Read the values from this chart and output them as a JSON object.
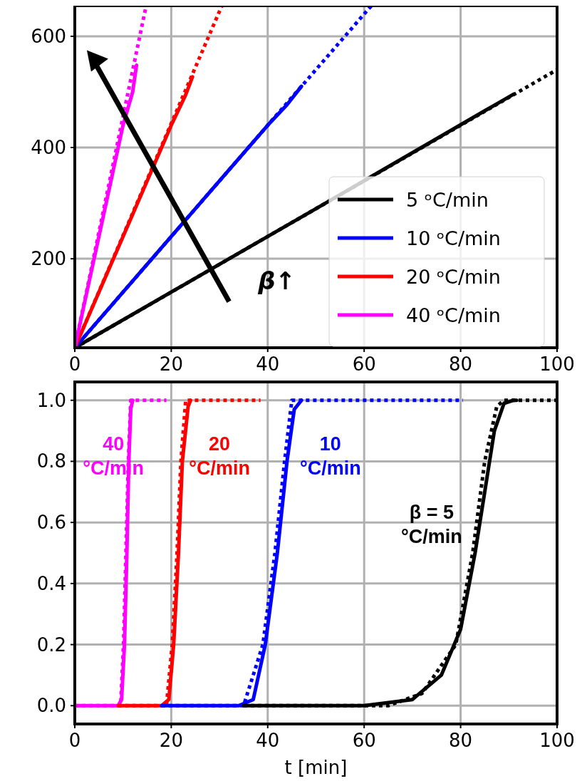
{
  "chart_data": [
    {
      "type": "line",
      "xlim": [
        0,
        100
      ],
      "ylim": [
        40,
        655
      ],
      "xticks": [
        0,
        20,
        40,
        60,
        80,
        100
      ],
      "yticks": [
        200,
        400,
        600
      ],
      "grid": true,
      "legend": "bottom right",
      "annotations": [
        "β↑"
      ],
      "series": [
        {
          "name": "5 ᵒC/min",
          "color": "#000000",
          "line_style": "solid",
          "x": [
            0,
            30,
            50,
            85,
            88,
            91
          ],
          "values": [
            40,
            190,
            290,
            466,
            481,
            496
          ]
        },
        {
          "color": "#000000",
          "line_style": "dotted",
          "x": [
            0,
            100
          ],
          "values": [
            40,
            540
          ]
        },
        {
          "name": "10 ᵒC/min",
          "color": "#0000ff",
          "line_style": "solid",
          "x": [
            0,
            20,
            40,
            44,
            47
          ],
          "values": [
            40,
            240,
            440,
            477,
            510
          ]
        },
        {
          "color": "#0000ff",
          "line_style": "dotted",
          "x": [
            0,
            61.5
          ],
          "values": [
            40,
            655
          ]
        },
        {
          "name": "20 ᵒC/min",
          "color": "#ff0000",
          "line_style": "solid",
          "x": [
            0,
            10,
            20,
            23,
            24.4
          ],
          "values": [
            40,
            240,
            440,
            495,
            527
          ]
        },
        {
          "color": "#ff0000",
          "line_style": "dotted",
          "x": [
            0,
            30.5
          ],
          "values": [
            40,
            655
          ]
        },
        {
          "name": "40 ᵒC/min",
          "color": "#ff00ff",
          "line_style": "solid",
          "x": [
            0,
            5,
            10,
            12,
            12.8
          ],
          "values": [
            40,
            240,
            440,
            500,
            548
          ]
        },
        {
          "color": "#ff00ff",
          "line_style": "dotted",
          "x": [
            0,
            14.8
          ],
          "values": [
            40,
            655
          ]
        }
      ]
    },
    {
      "type": "line",
      "xlabel": "t [min]",
      "xlim": [
        0,
        100
      ],
      "ylim": [
        -0.06,
        1.06
      ],
      "xticks": [
        0,
        20,
        40,
        60,
        80,
        100
      ],
      "yticks": [
        {
          "value": 0,
          "label": "0.0"
        },
        {
          "value": 0.2,
          "label": "0.2"
        },
        {
          "value": 0.4,
          "label": "0.4"
        },
        {
          "value": 0.6,
          "label": "0.6"
        },
        {
          "value": 0.8,
          "label": "0.8"
        },
        {
          "value": 1,
          "label": "1.0"
        }
      ],
      "grid": true,
      "annotations": [
        "40 °C/min",
        "20 °C/min",
        "10 °C/min",
        "β = 5 °C/min"
      ],
      "series": [
        {
          "color": "#ff00ff",
          "line_style": "solid",
          "x": [
            0,
            9,
            9.7,
            10.3,
            10.8,
            11.2,
            11.6,
            12
          ],
          "values": [
            0,
            0,
            0.02,
            0.2,
            0.5,
            0.8,
            0.97,
            1
          ]
        },
        {
          "color": "#ff00ff",
          "line_style": "dotted",
          "x": [
            0,
            9.5,
            10.1,
            10.6,
            11.1,
            11.6,
            19
          ],
          "values": [
            0,
            0,
            0.2,
            0.5,
            0.8,
            1,
            1
          ]
        },
        {
          "color": "#ff0000",
          "line_style": "solid",
          "x": [
            9,
            18,
            19.5,
            20.5,
            21.5,
            22.3,
            23.5,
            24
          ],
          "values": [
            0,
            0,
            0.02,
            0.2,
            0.5,
            0.8,
            0.98,
            1
          ]
        },
        {
          "color": "#ff0000",
          "line_style": "dotted",
          "x": [
            9,
            19,
            20.2,
            21.2,
            22,
            23,
            38.5
          ],
          "values": [
            0,
            0,
            0.2,
            0.5,
            0.8,
            1,
            1
          ]
        },
        {
          "color": "#0000ff",
          "line_style": "solid",
          "x": [
            18,
            34,
            37,
            39.5,
            42,
            44,
            45.5,
            47
          ],
          "values": [
            0,
            0,
            0.02,
            0.2,
            0.5,
            0.8,
            0.97,
            1
          ]
        },
        {
          "color": "#0000ff",
          "line_style": "dotted",
          "x": [
            18,
            35,
            39,
            41.5,
            43.5,
            45,
            80.5
          ],
          "values": [
            0,
            0,
            0.2,
            0.5,
            0.8,
            1,
            1
          ]
        },
        {
          "color": "#000000",
          "line_style": "solid",
          "x": [
            35,
            60,
            70,
            76,
            80,
            83,
            85,
            87,
            89,
            91,
            91.6
          ],
          "values": [
            0,
            0,
            0.02,
            0.1,
            0.25,
            0.5,
            0.7,
            0.9,
            0.99,
            1,
            1
          ]
        },
        {
          "color": "#000000",
          "line_style": "dotted",
          "x": [
            35,
            65,
            72,
            79,
            82.5,
            85,
            87.5,
            89,
            100
          ],
          "values": [
            0,
            0,
            0.04,
            0.2,
            0.5,
            0.8,
            0.98,
            1,
            1
          ]
        }
      ]
    }
  ]
}
